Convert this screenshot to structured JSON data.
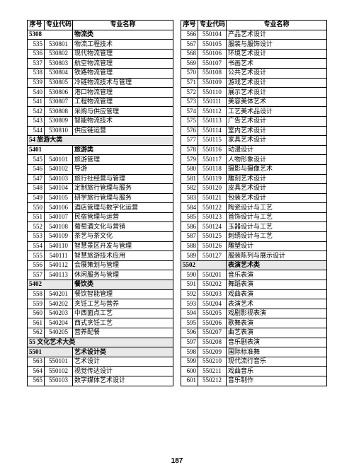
{
  "headers": {
    "seq": "序号",
    "code": "专业代码",
    "name": "专业名称"
  },
  "pageNumber": "187",
  "leftRows": [
    {
      "t": "cat",
      "code": "5308",
      "name": "物流类",
      "whiteBg": true
    },
    {
      "t": "d",
      "seq": "535",
      "code": "530801",
      "name": "物流工程技术"
    },
    {
      "t": "d",
      "seq": "536",
      "code": "530802",
      "name": "现代物流管理"
    },
    {
      "t": "d",
      "seq": "537",
      "code": "530803",
      "name": "航空物流管理"
    },
    {
      "t": "d",
      "seq": "538",
      "code": "530804",
      "name": "铁路物流管理"
    },
    {
      "t": "d",
      "seq": "539",
      "code": "530805",
      "name": "冷链物流技术与管理"
    },
    {
      "t": "d",
      "seq": "540",
      "code": "530806",
      "name": "港口物流管理"
    },
    {
      "t": "d",
      "seq": "541",
      "code": "530807",
      "name": "工程物流管理"
    },
    {
      "t": "d",
      "seq": "542",
      "code": "530808",
      "name": "采购与供应管理"
    },
    {
      "t": "d",
      "seq": "543",
      "code": "530809",
      "name": "智能物流技术"
    },
    {
      "t": "d",
      "seq": "544",
      "code": "530810",
      "name": "供应链运营"
    },
    {
      "t": "major",
      "name": "54 旅游大类"
    },
    {
      "t": "cat",
      "code": "5401",
      "name": "旅游类",
      "whiteBg": true
    },
    {
      "t": "d",
      "seq": "545",
      "code": "540101",
      "name": "旅游管理"
    },
    {
      "t": "d",
      "seq": "546",
      "code": "540102",
      "name": "导游"
    },
    {
      "t": "d",
      "seq": "547",
      "code": "540103",
      "name": "旅行社经营与管理"
    },
    {
      "t": "d",
      "seq": "548",
      "code": "540104",
      "name": "定制旅行管理与服务"
    },
    {
      "t": "d",
      "seq": "549",
      "code": "540105",
      "name": "研学旅行管理与服务"
    },
    {
      "t": "d",
      "seq": "550",
      "code": "540106",
      "name": "酒店管理与数字化运营"
    },
    {
      "t": "d",
      "seq": "551",
      "code": "540107",
      "name": "民宿管理与运营"
    },
    {
      "t": "d",
      "seq": "552",
      "code": "540108",
      "name": "葡萄酒文化与营销"
    },
    {
      "t": "d",
      "seq": "553",
      "code": "540109",
      "name": "茶艺与茶文化"
    },
    {
      "t": "d",
      "seq": "554",
      "code": "540110",
      "name": "智慧景区开发与管理"
    },
    {
      "t": "d",
      "seq": "555",
      "code": "540111",
      "name": "智慧旅游技术应用"
    },
    {
      "t": "d",
      "seq": "556",
      "code": "540112",
      "name": "会展策划与管理"
    },
    {
      "t": "d",
      "seq": "557",
      "code": "540113",
      "name": "休闲服务与管理"
    },
    {
      "t": "cat",
      "code": "5402",
      "name": "餐饮类"
    },
    {
      "t": "d",
      "seq": "558",
      "code": "540201",
      "name": "餐饮智能管理"
    },
    {
      "t": "d",
      "seq": "559",
      "code": "540202",
      "name": "烹饪工艺与营养"
    },
    {
      "t": "d",
      "seq": "560",
      "code": "540203",
      "name": "中西面点工艺"
    },
    {
      "t": "d",
      "seq": "561",
      "code": "540204",
      "name": "西式烹饪工艺"
    },
    {
      "t": "d",
      "seq": "562",
      "code": "540205",
      "name": "营养配餐"
    },
    {
      "t": "major",
      "name": "55 文化艺术大类"
    },
    {
      "t": "cat",
      "code": "5501",
      "name": "艺术设计类"
    },
    {
      "t": "d",
      "seq": "563",
      "code": "550101",
      "name": "艺术设计"
    },
    {
      "t": "d",
      "seq": "564",
      "code": "550102",
      "name": "视觉传达设计"
    },
    {
      "t": "d",
      "seq": "565",
      "code": "550103",
      "name": "数字媒体艺术设计"
    }
  ],
  "rightRows": [
    {
      "t": "d",
      "seq": "566",
      "code": "550104",
      "name": "产品艺术设计"
    },
    {
      "t": "d",
      "seq": "567",
      "code": "550105",
      "name": "服装与服饰设计"
    },
    {
      "t": "d",
      "seq": "568",
      "code": "550106",
      "name": "环境艺术设计"
    },
    {
      "t": "d",
      "seq": "569",
      "code": "550107",
      "name": "书画艺术"
    },
    {
      "t": "d",
      "seq": "570",
      "code": "550108",
      "name": "公共艺术设计"
    },
    {
      "t": "d",
      "seq": "571",
      "code": "550109",
      "name": "游戏艺术设计"
    },
    {
      "t": "d",
      "seq": "572",
      "code": "550110",
      "name": "展示艺术设计"
    },
    {
      "t": "d",
      "seq": "573",
      "code": "550111",
      "name": "美容美体艺术"
    },
    {
      "t": "d",
      "seq": "574",
      "code": "550112",
      "name": "工艺美术品设计"
    },
    {
      "t": "d",
      "seq": "575",
      "code": "550113",
      "name": "广告艺术设计"
    },
    {
      "t": "d",
      "seq": "576",
      "code": "550114",
      "name": "室内艺术设计"
    },
    {
      "t": "d",
      "seq": "577",
      "code": "550115",
      "name": "家具艺术设计"
    },
    {
      "t": "d",
      "seq": "578",
      "code": "550116",
      "name": "动漫设计"
    },
    {
      "t": "d",
      "seq": "579",
      "code": "550117",
      "name": "人物形象设计"
    },
    {
      "t": "d",
      "seq": "580",
      "code": "550118",
      "name": "摄影与摄像艺术"
    },
    {
      "t": "d",
      "seq": "581",
      "code": "550119",
      "name": "雕刻艺术设计"
    },
    {
      "t": "d",
      "seq": "582",
      "code": "550120",
      "name": "皮具艺术设计"
    },
    {
      "t": "d",
      "seq": "583",
      "code": "550121",
      "name": "包装艺术设计"
    },
    {
      "t": "d",
      "seq": "584",
      "code": "550122",
      "name": "陶瓷设计与工艺"
    },
    {
      "t": "d",
      "seq": "585",
      "code": "550123",
      "name": "首饰设计与工艺"
    },
    {
      "t": "d",
      "seq": "586",
      "code": "550124",
      "name": "玉器设计与工艺"
    },
    {
      "t": "d",
      "seq": "587",
      "code": "550125",
      "name": "刺绣设计与工艺"
    },
    {
      "t": "d",
      "seq": "588",
      "code": "550126",
      "name": "雕塑设计"
    },
    {
      "t": "d",
      "seq": "589",
      "code": "550127",
      "name": "服装陈列与展示设计"
    },
    {
      "t": "cat",
      "code": "5502",
      "name": "表演艺术类"
    },
    {
      "t": "d",
      "seq": "590",
      "code": "550201",
      "name": "音乐表演"
    },
    {
      "t": "d",
      "seq": "591",
      "code": "550202",
      "name": "舞蹈表演"
    },
    {
      "t": "d",
      "seq": "592",
      "code": "550203",
      "name": "戏曲表演"
    },
    {
      "t": "d",
      "seq": "593",
      "code": "550204",
      "name": "表演艺术"
    },
    {
      "t": "d",
      "seq": "594",
      "code": "550205",
      "name": "戏剧影视表演"
    },
    {
      "t": "d",
      "seq": "595",
      "code": "550206",
      "name": "歌舞表演"
    },
    {
      "t": "d",
      "seq": "596",
      "code": "550207",
      "name": "曲艺表演"
    },
    {
      "t": "d",
      "seq": "597",
      "code": "550208",
      "name": "音乐剧表演"
    },
    {
      "t": "d",
      "seq": "598",
      "code": "550209",
      "name": "国际标准舞"
    },
    {
      "t": "d",
      "seq": "599",
      "code": "550210",
      "name": "现代流行音乐"
    },
    {
      "t": "d",
      "seq": "600",
      "code": "550211",
      "name": "戏曲音乐"
    },
    {
      "t": "d",
      "seq": "601",
      "code": "550212",
      "name": "音乐制作"
    }
  ]
}
